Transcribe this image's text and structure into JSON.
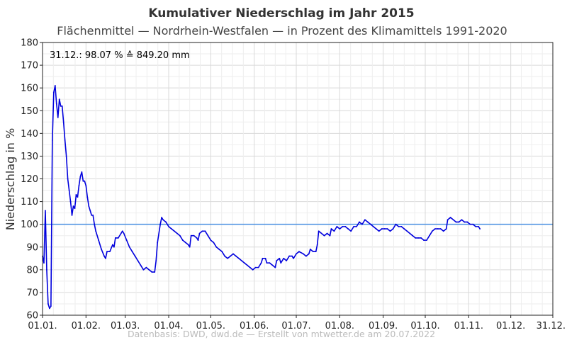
{
  "chart_data": {
    "type": "line",
    "title": "Kumulativer Niederschlag im Jahr 2015",
    "subtitle": "Flächenmittel — Nordrhein-Westfalen — in Prozent des Klimamittels 1991-2020",
    "ylabel": "Niederschlag in %",
    "xlabel": "",
    "annotation": "31.12.:  98.07 % ≙ 849.20 mm",
    "footer": "Datenbasis: DWD, dwd.de — Erstellt von mtwetter.de am 20.07.2022",
    "ylim": [
      60,
      180
    ],
    "yticks": [
      60,
      70,
      80,
      90,
      100,
      110,
      120,
      130,
      140,
      150,
      160,
      170,
      180
    ],
    "xlim": [
      0,
      364
    ],
    "xticks": [
      {
        "day": 0,
        "label": "01.01."
      },
      {
        "day": 31,
        "label": "01.02."
      },
      {
        "day": 59,
        "label": "01.03."
      },
      {
        "day": 90,
        "label": "01.04."
      },
      {
        "day": 120,
        "label": "01.05."
      },
      {
        "day": 151,
        "label": "01.06."
      },
      {
        "day": 181,
        "label": "01.07."
      },
      {
        "day": 212,
        "label": "01.08."
      },
      {
        "day": 243,
        "label": "01.09."
      },
      {
        "day": 273,
        "label": "01.10."
      },
      {
        "day": 304,
        "label": "01.11."
      },
      {
        "day": 334,
        "label": "01.12."
      },
      {
        "day": 364,
        "label": "31.12."
      }
    ],
    "grid": true,
    "reference_line": {
      "y": 100,
      "color": "#4a90e2"
    },
    "series": [
      {
        "color": "#0000dd",
        "points": [
          [
            0,
            86
          ],
          [
            1,
            83
          ],
          [
            2,
            106
          ],
          [
            3,
            80
          ],
          [
            4,
            65
          ],
          [
            5,
            63
          ],
          [
            6,
            64
          ],
          [
            7,
            137
          ],
          [
            8,
            158
          ],
          [
            9,
            161
          ],
          [
            10,
            153
          ],
          [
            11,
            147
          ],
          [
            12,
            155
          ],
          [
            13,
            152
          ],
          [
            14,
            152
          ],
          [
            15,
            145
          ],
          [
            16,
            137
          ],
          [
            17,
            130
          ],
          [
            18,
            120
          ],
          [
            19,
            115
          ],
          [
            20,
            110
          ],
          [
            21,
            104
          ],
          [
            22,
            108
          ],
          [
            23,
            107
          ],
          [
            24,
            113
          ],
          [
            25,
            112
          ],
          [
            26,
            117
          ],
          [
            27,
            121
          ],
          [
            28,
            123
          ],
          [
            29,
            119
          ],
          [
            30,
            119
          ],
          [
            31,
            117
          ],
          [
            32,
            112
          ],
          [
            33,
            108
          ],
          [
            34,
            106
          ],
          [
            35,
            104
          ],
          [
            36,
            104
          ],
          [
            37,
            100
          ],
          [
            38,
            97
          ],
          [
            40,
            93
          ],
          [
            42,
            89
          ],
          [
            44,
            86
          ],
          [
            45,
            85
          ],
          [
            46,
            88
          ],
          [
            48,
            88
          ],
          [
            50,
            91
          ],
          [
            51,
            90
          ],
          [
            52,
            94
          ],
          [
            54,
            94
          ],
          [
            56,
            96
          ],
          [
            57,
            97
          ],
          [
            58,
            96
          ],
          [
            60,
            93
          ],
          [
            62,
            90
          ],
          [
            64,
            88
          ],
          [
            66,
            86
          ],
          [
            68,
            84
          ],
          [
            70,
            82
          ],
          [
            72,
            80
          ],
          [
            74,
            81
          ],
          [
            76,
            80
          ],
          [
            78,
            79
          ],
          [
            80,
            79
          ],
          [
            81,
            84
          ],
          [
            82,
            92
          ],
          [
            84,
            100
          ],
          [
            85,
            103
          ],
          [
            86,
            102
          ],
          [
            88,
            101
          ],
          [
            90,
            99
          ],
          [
            92,
            98
          ],
          [
            94,
            97
          ],
          [
            96,
            96
          ],
          [
            98,
            95
          ],
          [
            100,
            93
          ],
          [
            102,
            92
          ],
          [
            104,
            91
          ],
          [
            105,
            90
          ],
          [
            106,
            95
          ],
          [
            108,
            95
          ],
          [
            110,
            94
          ],
          [
            111,
            93
          ],
          [
            112,
            96
          ],
          [
            114,
            97
          ],
          [
            116,
            97
          ],
          [
            118,
            95
          ],
          [
            120,
            93
          ],
          [
            122,
            92
          ],
          [
            124,
            90
          ],
          [
            126,
            89
          ],
          [
            128,
            88
          ],
          [
            130,
            86
          ],
          [
            132,
            85
          ],
          [
            134,
            86
          ],
          [
            136,
            87
          ],
          [
            138,
            86
          ],
          [
            140,
            85
          ],
          [
            142,
            84
          ],
          [
            144,
            83
          ],
          [
            146,
            82
          ],
          [
            148,
            81
          ],
          [
            150,
            80
          ],
          [
            152,
            81
          ],
          [
            154,
            81
          ],
          [
            156,
            83
          ],
          [
            157,
            85
          ],
          [
            159,
            85
          ],
          [
            160,
            83
          ],
          [
            162,
            83
          ],
          [
            164,
            82
          ],
          [
            166,
            81
          ],
          [
            167,
            84
          ],
          [
            169,
            85
          ],
          [
            170,
            83
          ],
          [
            172,
            85
          ],
          [
            174,
            84
          ],
          [
            176,
            86
          ],
          [
            178,
            86
          ],
          [
            179,
            85
          ],
          [
            181,
            87
          ],
          [
            183,
            88
          ],
          [
            186,
            87
          ],
          [
            188,
            86
          ],
          [
            190,
            87
          ],
          [
            191,
            89
          ],
          [
            193,
            88
          ],
          [
            195,
            88
          ],
          [
            196,
            91
          ],
          [
            197,
            97
          ],
          [
            199,
            96
          ],
          [
            201,
            95
          ],
          [
            203,
            96
          ],
          [
            205,
            95
          ],
          [
            206,
            98
          ],
          [
            208,
            97
          ],
          [
            210,
            99
          ],
          [
            212,
            98
          ],
          [
            214,
            99
          ],
          [
            216,
            99
          ],
          [
            218,
            98
          ],
          [
            220,
            97
          ],
          [
            222,
            99
          ],
          [
            224,
            99
          ],
          [
            226,
            101
          ],
          [
            228,
            100
          ],
          [
            230,
            102
          ],
          [
            232,
            101
          ],
          [
            234,
            100
          ],
          [
            236,
            99
          ],
          [
            238,
            98
          ],
          [
            240,
            97
          ],
          [
            242,
            98
          ],
          [
            244,
            98
          ],
          [
            246,
            98
          ],
          [
            248,
            97
          ],
          [
            250,
            98
          ],
          [
            252,
            100
          ],
          [
            254,
            99
          ],
          [
            256,
            99
          ],
          [
            258,
            98
          ],
          [
            260,
            97
          ],
          [
            262,
            96
          ],
          [
            264,
            95
          ],
          [
            266,
            94
          ],
          [
            268,
            94
          ],
          [
            270,
            94
          ],
          [
            272,
            93
          ],
          [
            274,
            93
          ],
          [
            276,
            95
          ],
          [
            278,
            97
          ],
          [
            280,
            98
          ],
          [
            282,
            98
          ],
          [
            284,
            98
          ],
          [
            286,
            97
          ],
          [
            288,
            98
          ],
          [
            289,
            102
          ],
          [
            291,
            103
          ],
          [
            293,
            102
          ],
          [
            295,
            101
          ],
          [
            297,
            101
          ],
          [
            299,
            102
          ],
          [
            301,
            101
          ],
          [
            303,
            101
          ],
          [
            305,
            100
          ],
          [
            307,
            100
          ],
          [
            309,
            99
          ],
          [
            311,
            99
          ],
          [
            312,
            98
          ]
        ]
      }
    ]
  }
}
